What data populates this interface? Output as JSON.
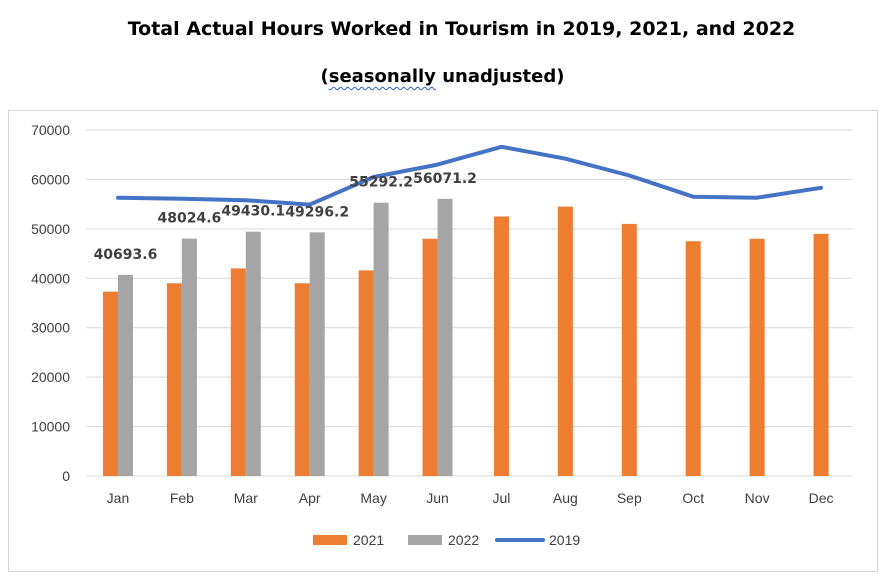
{
  "chart_data": {
    "type": "bar",
    "title": "Total Actual Hours Worked in Tourism in 2019, 2021, and 2022",
    "subtitle": {
      "open": "(",
      "underlined": "seasonally",
      "rest": " unadjusted)"
    },
    "categories": [
      "Jan",
      "Feb",
      "Mar",
      "Apr",
      "May",
      "Jun",
      "Jul",
      "Aug",
      "Sep",
      "Oct",
      "Nov",
      "Dec"
    ],
    "ylim": [
      0,
      70000
    ],
    "yticks": [
      "0",
      "10000",
      "20000",
      "30000",
      "40000",
      "50000",
      "60000",
      "70000"
    ],
    "grid": true,
    "legend_position": "bottom",
    "series": [
      {
        "name": "2021",
        "kind": "bar",
        "color": "#ed7d31",
        "values": [
          37300,
          39000,
          42000,
          39000,
          41600,
          48000,
          52500,
          54500,
          51000,
          47500,
          48000,
          49000
        ]
      },
      {
        "name": "2022",
        "kind": "bar",
        "color": "#a5a5a5",
        "values": [
          40693.6,
          48024.6,
          49430.1,
          49296.2,
          55292.2,
          56071.2,
          null,
          null,
          null,
          null,
          null,
          null
        ],
        "labels": [
          "40693.6",
          "48024.6",
          "49430.1",
          "49296.2",
          "55292.2",
          "56071.2"
        ]
      },
      {
        "name": "2019",
        "kind": "line",
        "color": "#4472c4",
        "values": [
          56300,
          56100,
          55800,
          54900,
          60500,
          63000,
          66600,
          64200,
          60800,
          56500,
          56300,
          58300
        ]
      }
    ]
  }
}
